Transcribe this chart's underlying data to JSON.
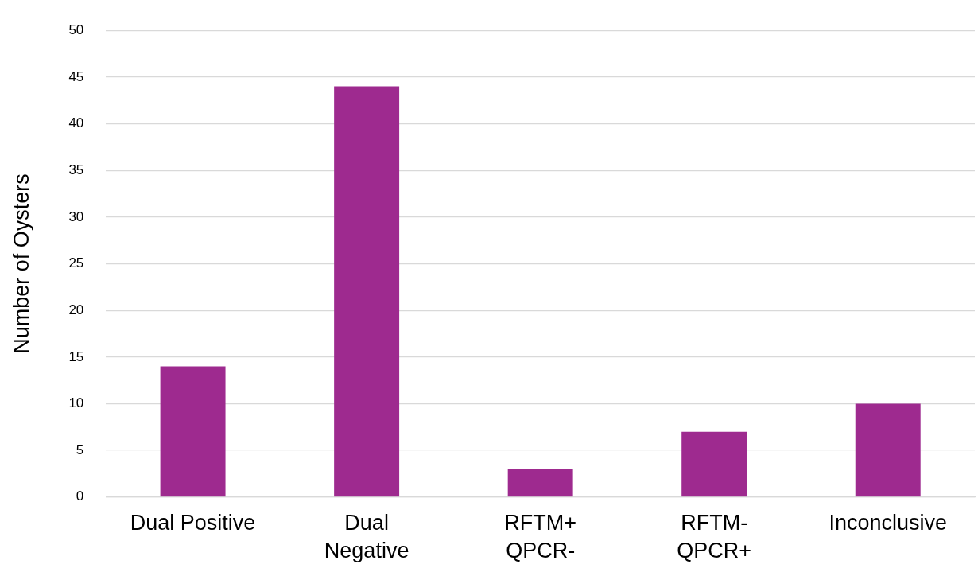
{
  "chart_data": {
    "type": "bar",
    "ylabel": "Number of Oysters",
    "categories": [
      "Dual Positive",
      "Dual\nNegative",
      "RFTM+\nQPCR-",
      "RFTM-\nQPCR+",
      "Inconclusive"
    ],
    "values": [
      14,
      44,
      3,
      7,
      10
    ],
    "color": "#9e2a8f",
    "ylim": [
      0,
      50
    ],
    "yticks": [
      0,
      5,
      10,
      15,
      20,
      25,
      30,
      35,
      40,
      45,
      50
    ],
    "grid": "y",
    "legend": false
  }
}
